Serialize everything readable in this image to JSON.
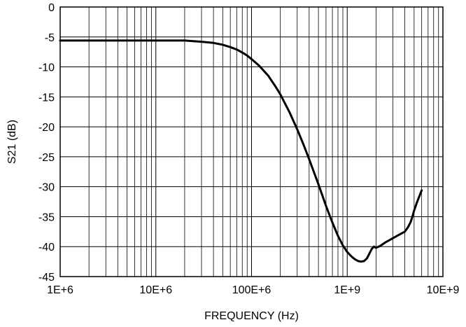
{
  "chart_data": {
    "type": "line",
    "xlabel": "FREQUENCY (Hz)",
    "ylabel": "S21 (dB)",
    "xscale": "log",
    "xlim": [
      1000000,
      10000000000
    ],
    "ylim": [
      -45,
      0
    ],
    "grid": true,
    "x_tick_labels": [
      "1E+6",
      "10E+6",
      "100E+6",
      "1E+9",
      "10E+9"
    ],
    "x_tick_values": [
      1000000,
      10000000,
      100000000,
      1000000000,
      10000000000
    ],
    "y_tick_labels": [
      "0",
      "-5",
      "-10",
      "-15",
      "-20",
      "-25",
      "-30",
      "-35",
      "-40",
      "-45"
    ],
    "y_tick_values": [
      0,
      -5,
      -10,
      -15,
      -20,
      -25,
      -30,
      -35,
      -40,
      -45
    ],
    "series": [
      {
        "color": "#000000",
        "x": [
          1000000,
          2000000,
          5000000,
          10000000,
          20000000,
          30000000,
          40000000,
          50000000,
          60000000,
          70000000,
          80000000,
          90000000,
          100000000,
          120000000,
          150000000,
          180000000,
          200000000,
          250000000,
          300000000,
          350000000,
          400000000,
          500000000,
          600000000,
          700000000,
          800000000,
          900000000,
          1000000000,
          1100000000,
          1200000000,
          1300000000,
          1400000000,
          1500000000,
          1600000000,
          1700000000,
          1800000000,
          1900000000,
          2000000000,
          2200000000,
          2500000000,
          3000000000,
          3500000000,
          4000000000,
          4300000000,
          4600000000,
          4800000000,
          5000000000,
          5300000000,
          5600000000,
          6000000000
        ],
        "y": [
          -5.6,
          -5.6,
          -5.6,
          -5.6,
          -5.6,
          -5.8,
          -6.0,
          -6.3,
          -6.7,
          -7.1,
          -7.6,
          -8.1,
          -8.7,
          -9.8,
          -11.5,
          -13.4,
          -14.6,
          -17.6,
          -20.4,
          -23.0,
          -25.4,
          -29.6,
          -33.2,
          -36.0,
          -38.2,
          -39.8,
          -40.9,
          -41.6,
          -42.1,
          -42.4,
          -42.5,
          -42.4,
          -42.0,
          -41.2,
          -40.4,
          -40.0,
          -40.2,
          -39.9,
          -39.3,
          -38.6,
          -38.0,
          -37.5,
          -36.8,
          -35.9,
          -35.0,
          -34.0,
          -32.8,
          -31.8,
          -30.6
        ]
      }
    ]
  }
}
